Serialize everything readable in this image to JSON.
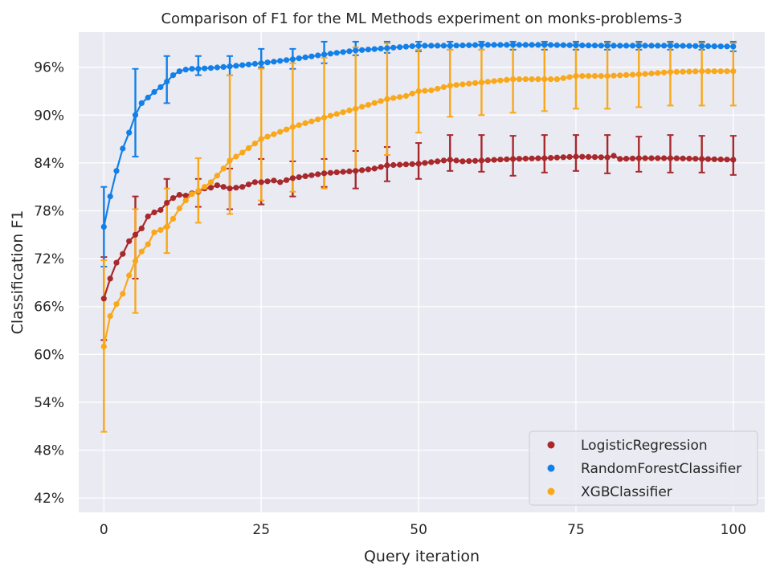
{
  "chart_data": {
    "type": "line",
    "title": "Comparison of F1 for the ML Methods experiment on monks-problems-3",
    "xlabel": "Query iteration",
    "ylabel": "Classification F1",
    "xlim": [
      -4,
      105
    ],
    "ylim": [
      40.2,
      100.4
    ],
    "x_ticks": [
      0,
      25,
      50,
      75,
      100
    ],
    "x_tick_labels": [
      "0",
      "25",
      "50",
      "75",
      "100"
    ],
    "y_ticks": [
      42,
      48,
      54,
      60,
      66,
      72,
      78,
      84,
      90,
      96
    ],
    "y_tick_labels": [
      "42%",
      "48%",
      "54%",
      "60%",
      "66%",
      "72%",
      "78%",
      "84%",
      "90%",
      "96%"
    ],
    "grid": true,
    "legend_position": "bottom-right",
    "series": [
      {
        "name": "LogisticRegression",
        "color": "#a8292c",
        "anchors": [
          [
            0,
            67.0
          ],
          [
            1,
            69.5
          ],
          [
            2,
            71.5
          ],
          [
            3,
            72.6
          ],
          [
            4,
            74.2
          ],
          [
            5,
            75.0
          ],
          [
            6,
            75.8
          ],
          [
            7,
            77.3
          ],
          [
            8,
            77.8
          ],
          [
            9,
            78.1
          ],
          [
            10,
            79.0
          ],
          [
            11,
            79.6
          ],
          [
            12,
            80.0
          ],
          [
            13,
            79.9
          ],
          [
            14,
            80.2
          ],
          [
            15,
            80.4
          ],
          [
            16,
            80.8
          ],
          [
            17,
            80.9
          ],
          [
            18,
            81.2
          ],
          [
            19,
            81.0
          ],
          [
            20,
            80.8
          ],
          [
            21,
            80.9
          ],
          [
            22,
            81.0
          ],
          [
            23,
            81.3
          ],
          [
            24,
            81.6
          ],
          [
            25,
            81.6
          ],
          [
            27,
            81.8
          ],
          [
            28,
            81.6
          ],
          [
            30,
            82.1
          ],
          [
            35,
            82.7
          ],
          [
            40,
            83.0
          ],
          [
            43,
            83.3
          ],
          [
            45,
            83.7
          ],
          [
            50,
            83.9
          ],
          [
            52,
            84.1
          ],
          [
            55,
            84.4
          ],
          [
            57,
            84.2
          ],
          [
            60,
            84.3
          ],
          [
            65,
            84.5
          ],
          [
            70,
            84.6
          ],
          [
            75,
            84.8
          ],
          [
            80,
            84.7
          ],
          [
            81,
            84.9
          ],
          [
            82,
            84.5
          ],
          [
            85,
            84.6
          ],
          [
            90,
            84.6
          ],
          [
            95,
            84.5
          ],
          [
            100,
            84.4
          ]
        ],
        "error_bars": [
          {
            "x": 0,
            "low": 61.8,
            "high": 72.2
          },
          {
            "x": 5,
            "low": 69.5,
            "high": 79.8
          },
          {
            "x": 10,
            "low": 76.0,
            "high": 82.0
          },
          {
            "x": 15,
            "low": 78.5,
            "high": 82.0
          },
          {
            "x": 20,
            "low": 78.2,
            "high": 83.3
          },
          {
            "x": 25,
            "low": 78.8,
            "high": 84.5
          },
          {
            "x": 30,
            "low": 79.8,
            "high": 84.2
          },
          {
            "x": 35,
            "low": 81.0,
            "high": 84.5
          },
          {
            "x": 40,
            "low": 80.8,
            "high": 85.5
          },
          {
            "x": 45,
            "low": 81.7,
            "high": 86.0
          },
          {
            "x": 50,
            "low": 82.0,
            "high": 86.5
          },
          {
            "x": 55,
            "low": 83.0,
            "high": 87.5
          },
          {
            "x": 60,
            "low": 82.9,
            "high": 87.5
          },
          {
            "x": 65,
            "low": 82.4,
            "high": 87.4
          },
          {
            "x": 70,
            "low": 82.8,
            "high": 87.5
          },
          {
            "x": 75,
            "low": 83.0,
            "high": 87.5
          },
          {
            "x": 80,
            "low": 82.7,
            "high": 87.5
          },
          {
            "x": 85,
            "low": 82.9,
            "high": 87.3
          },
          {
            "x": 90,
            "low": 82.8,
            "high": 87.5
          },
          {
            "x": 95,
            "low": 82.8,
            "high": 87.4
          },
          {
            "x": 100,
            "low": 82.5,
            "high": 87.4
          }
        ]
      },
      {
        "name": "RandomForestClassifier",
        "color": "#1380e8",
        "anchors": [
          [
            0,
            76.0
          ],
          [
            1,
            79.8
          ],
          [
            2,
            83.0
          ],
          [
            3,
            85.8
          ],
          [
            4,
            87.8
          ],
          [
            5,
            90.0
          ],
          [
            6,
            91.5
          ],
          [
            7,
            92.2
          ],
          [
            8,
            92.9
          ],
          [
            9,
            93.5
          ],
          [
            10,
            94.2
          ],
          [
            11,
            95.0
          ],
          [
            12,
            95.5
          ],
          [
            13,
            95.7
          ],
          [
            14,
            95.8
          ],
          [
            15,
            95.8
          ],
          [
            17,
            95.9
          ],
          [
            20,
            96.1
          ],
          [
            25,
            96.5
          ],
          [
            30,
            97.0
          ],
          [
            35,
            97.6
          ],
          [
            40,
            98.1
          ],
          [
            45,
            98.4
          ],
          [
            50,
            98.7
          ],
          [
            55,
            98.7
          ],
          [
            60,
            98.8
          ],
          [
            70,
            98.8
          ],
          [
            80,
            98.7
          ],
          [
            90,
            98.7
          ],
          [
            100,
            98.6
          ]
        ],
        "error_bars": [
          {
            "x": 0,
            "low": 71.0,
            "high": 81.0
          },
          {
            "x": 5,
            "low": 84.8,
            "high": 95.8
          },
          {
            "x": 10,
            "low": 91.5,
            "high": 97.4
          },
          {
            "x": 15,
            "low": 95.0,
            "high": 97.4
          },
          {
            "x": 20,
            "low": 95.0,
            "high": 97.4
          },
          {
            "x": 25,
            "low": 96.0,
            "high": 98.3
          },
          {
            "x": 30,
            "low": 95.8,
            "high": 98.3
          },
          {
            "x": 35,
            "low": 96.5,
            "high": 99.2
          },
          {
            "x": 40,
            "low": 97.5,
            "high": 99.2
          },
          {
            "x": 45,
            "low": 97.8,
            "high": 99.2
          },
          {
            "x": 50,
            "low": 98.0,
            "high": 99.2
          },
          {
            "x": 55,
            "low": 98.2,
            "high": 99.2
          },
          {
            "x": 60,
            "low": 98.2,
            "high": 99.2
          },
          {
            "x": 65,
            "low": 98.2,
            "high": 99.2
          },
          {
            "x": 70,
            "low": 98.2,
            "high": 99.2
          },
          {
            "x": 75,
            "low": 98.2,
            "high": 99.2
          },
          {
            "x": 80,
            "low": 98.2,
            "high": 99.2
          },
          {
            "x": 85,
            "low": 98.2,
            "high": 99.2
          },
          {
            "x": 90,
            "low": 98.2,
            "high": 99.2
          },
          {
            "x": 95,
            "low": 98.2,
            "high": 99.2
          },
          {
            "x": 100,
            "low": 98.0,
            "high": 99.2
          }
        ]
      },
      {
        "name": "XGBClassifier",
        "color": "#f9a81b",
        "anchors": [
          [
            0,
            61.0
          ],
          [
            1,
            64.8
          ],
          [
            2,
            66.3
          ],
          [
            3,
            67.6
          ],
          [
            4,
            69.9
          ],
          [
            5,
            71.7
          ],
          [
            6,
            72.9
          ],
          [
            7,
            73.8
          ],
          [
            8,
            75.3
          ],
          [
            9,
            75.6
          ],
          [
            10,
            76.0
          ],
          [
            11,
            77.0
          ],
          [
            12,
            78.3
          ],
          [
            13,
            79.3
          ],
          [
            14,
            80.1
          ],
          [
            15,
            80.5
          ],
          [
            16,
            81.0
          ],
          [
            17,
            81.6
          ],
          [
            18,
            82.4
          ],
          [
            19,
            83.3
          ],
          [
            20,
            84.3
          ],
          [
            22,
            85.3
          ],
          [
            25,
            87.0
          ],
          [
            30,
            88.5
          ],
          [
            35,
            89.7
          ],
          [
            40,
            90.8
          ],
          [
            45,
            92.0
          ],
          [
            48,
            92.4
          ],
          [
            50,
            93.0
          ],
          [
            52,
            93.1
          ],
          [
            55,
            93.7
          ],
          [
            60,
            94.1
          ],
          [
            65,
            94.5
          ],
          [
            70,
            94.5
          ],
          [
            72,
            94.5
          ],
          [
            75,
            94.9
          ],
          [
            80,
            94.9
          ],
          [
            85,
            95.1
          ],
          [
            90,
            95.4
          ],
          [
            95,
            95.5
          ],
          [
            100,
            95.5
          ]
        ],
        "error_bars": [
          {
            "x": 0,
            "low": 50.3,
            "high": 71.8
          },
          {
            "x": 5,
            "low": 65.2,
            "high": 78.2
          },
          {
            "x": 10,
            "low": 72.7,
            "high": 80.8
          },
          {
            "x": 15,
            "low": 76.5,
            "high": 84.6
          },
          {
            "x": 20,
            "low": 77.6,
            "high": 95.0
          },
          {
            "x": 25,
            "low": 79.3,
            "high": 95.8
          },
          {
            "x": 30,
            "low": 80.4,
            "high": 96.5
          },
          {
            "x": 35,
            "low": 80.8,
            "high": 97.2
          },
          {
            "x": 40,
            "low": 83.0,
            "high": 98.5
          },
          {
            "x": 45,
            "low": 85.0,
            "high": 99.0
          },
          {
            "x": 50,
            "low": 87.8,
            "high": 98.2
          },
          {
            "x": 55,
            "low": 89.8,
            "high": 98.2
          },
          {
            "x": 60,
            "low": 90.0,
            "high": 98.2
          },
          {
            "x": 65,
            "low": 90.3,
            "high": 98.8
          },
          {
            "x": 70,
            "low": 90.5,
            "high": 99.0
          },
          {
            "x": 75,
            "low": 90.8,
            "high": 99.0
          },
          {
            "x": 80,
            "low": 90.8,
            "high": 99.0
          },
          {
            "x": 85,
            "low": 91.0,
            "high": 99.0
          },
          {
            "x": 90,
            "low": 91.2,
            "high": 99.0
          },
          {
            "x": 95,
            "low": 91.2,
            "high": 99.0
          },
          {
            "x": 100,
            "low": 91.2,
            "high": 99.0
          }
        ]
      }
    ],
    "colors": {
      "plot_background": "#eaeaf2",
      "grid": "#ffffff",
      "legend_background": "#eaeaf2",
      "legend_border": "#cccccc"
    }
  }
}
